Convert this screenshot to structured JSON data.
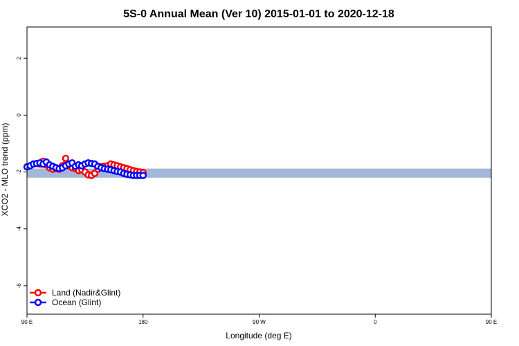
{
  "chart_data": {
    "type": "line",
    "title": "5S-0 Annual Mean (Ver 10)   2015-01-01 to 2020-12-18",
    "xlabel": "Longitude (deg E)",
    "ylabel": "XCO2 - MLO trend (ppm)",
    "xlim": [
      90,
      450
    ],
    "ylim": [
      -7,
      3.1
    ],
    "x_ticks": [
      {
        "value": 90,
        "label": "90 E"
      },
      {
        "value": 180,
        "label": "180"
      },
      {
        "value": 270,
        "label": "90 W"
      },
      {
        "value": 360,
        "label": "0"
      },
      {
        "value": 450,
        "label": "90 E"
      },
      {
        "value": 540,
        "label": "180"
      }
    ],
    "y_ticks": [
      {
        "value": 2,
        "label": "2"
      },
      {
        "value": 0,
        "label": "0"
      },
      {
        "value": -2,
        "label": "-2"
      },
      {
        "value": -4,
        "label": "-4"
      },
      {
        "value": -6,
        "label": "-6"
      }
    ],
    "band": {
      "ymin": -2.2,
      "ymax": -1.88,
      "color": "#a3b8d8"
    },
    "land_fill_color": "#f6d37e",
    "legend_position": "bottom-left",
    "series": [
      {
        "name": "Land (Nadir&Glint)",
        "color": "#ff0000",
        "x": [
          100,
          102.5,
          105,
          107.5,
          110,
          112.5,
          115,
          117.5,
          120,
          122.5,
          125,
          127.5,
          130,
          132.5,
          135,
          137.5,
          140,
          142.5,
          145,
          147.5,
          150,
          152.5,
          155,
          157.5,
          160,
          162.5,
          165,
          167.5,
          170,
          172.5,
          175,
          177.5,
          180
        ],
        "y": [
          -1.72,
          -1.62,
          -1.75,
          -1.85,
          -1.9,
          -1.88,
          -1.9,
          -1.78,
          -1.52,
          -1.78,
          -1.85,
          -1.88,
          -1.95,
          -1.92,
          -2.0,
          -2.1,
          -2.12,
          -2.05,
          -1.9,
          -1.82,
          -1.8,
          -1.78,
          -1.72,
          -1.75,
          -1.78,
          -1.82,
          -1.85,
          -1.88,
          -1.92,
          -1.95,
          -1.98,
          -2.0,
          -2.02
        ]
      },
      {
        "name": "Ocean (Glint)",
        "color": "#0000ff",
        "x": [
          90,
          92.5,
          95,
          97.5,
          100,
          102.5,
          105,
          107.5,
          110,
          112.5,
          115,
          117.5,
          120,
          122.5,
          125,
          127.5,
          130,
          132.5,
          135,
          137.5,
          140,
          142.5,
          145,
          147.5,
          150,
          152.5,
          155,
          157.5,
          160,
          162.5,
          165,
          167.5,
          170,
          172.5,
          175,
          177.5,
          180
        ],
        "y": [
          -1.82,
          -1.78,
          -1.72,
          -1.7,
          -1.68,
          -1.72,
          -1.65,
          -1.75,
          -1.8,
          -1.85,
          -1.88,
          -1.85,
          -1.78,
          -1.72,
          -1.68,
          -1.8,
          -1.75,
          -1.78,
          -1.72,
          -1.68,
          -1.7,
          -1.72,
          -1.8,
          -1.85,
          -1.88,
          -1.9,
          -1.92,
          -1.95,
          -1.98,
          -2.0,
          -2.05,
          -2.08,
          -2.1,
          -2.12,
          -2.12,
          -2.12,
          -2.12
        ]
      }
    ]
  }
}
